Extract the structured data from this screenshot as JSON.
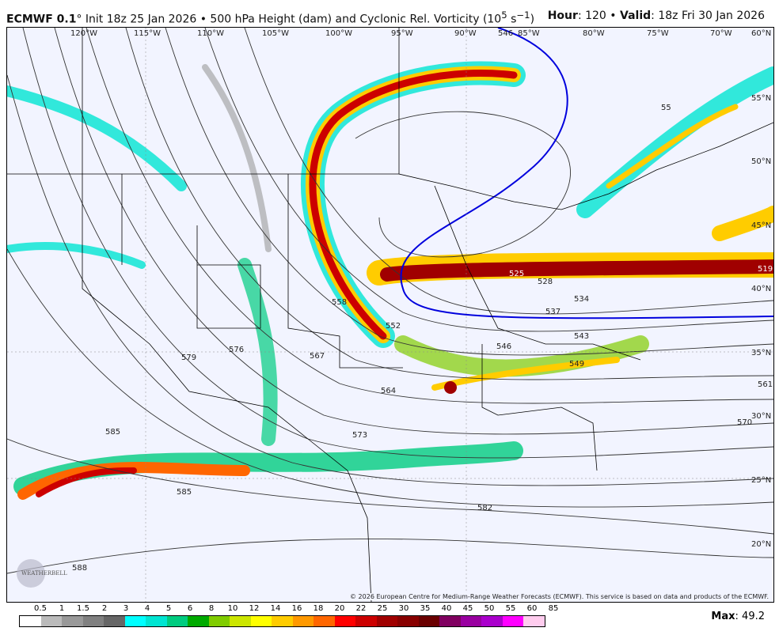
{
  "header": {
    "model": "ECMWF 0.1",
    "degree": "°",
    "init": " Init 18z 25 Jan 2026 • 500 hPa Height (dam) and Cyclonic Rel. Vorticity (10",
    "unit_exp": "5",
    "unit_tail": " s",
    "unit_tail_exp": "−1",
    "unit_close": ")",
    "hour_label": "Hour",
    "hour": "120",
    "valid_label": "Valid",
    "valid": "18z Fri 30 Jan 2026"
  },
  "map": {
    "longitudes": [
      "120°W",
      "115°W",
      "110°W",
      "105°W",
      "100°W",
      "95°W",
      "90°W",
      "85°W",
      "80°W",
      "75°W",
      "70°W",
      "60°N"
    ],
    "latitudes": [
      "55°N",
      "50°N",
      "45°N",
      "40°N",
      "35°N",
      "30°N",
      "25°N",
      "20°N"
    ],
    "contour_labels": [
      "546",
      "525",
      "528",
      "534",
      "537",
      "543",
      "546",
      "549",
      "552",
      "558",
      "561",
      "564",
      "567",
      "570",
      "573",
      "576",
      "579",
      "582",
      "585",
      "588",
      "519",
      "585",
      "55"
    ],
    "copyright": "© 2026 European Centre for Medium-Range Weather Forecasts (ECMWF). This service is based on data and products of the ECMWF.",
    "logo_text": "WEATHERBELL",
    "colors": {
      "background": "#f2f4ff",
      "highlight_contour": "#0000dd",
      "contour": "#333333"
    }
  },
  "colorbar": {
    "ticks": [
      "0.5",
      "1",
      "1.5",
      "2",
      "3",
      "4",
      "5",
      "6",
      "8",
      "10",
      "12",
      "14",
      "16",
      "18",
      "20",
      "22",
      "25",
      "30",
      "35",
      "40",
      "45",
      "50",
      "55",
      "60",
      "85"
    ],
    "colors": [
      "#ffffff",
      "#bbbbbb",
      "#999999",
      "#808080",
      "#666666",
      "#00ffff",
      "#00e5d2",
      "#00cc80",
      "#00aa00",
      "#80cc00",
      "#cce600",
      "#ffff00",
      "#ffcc00",
      "#ff9900",
      "#ff6600",
      "#ff0000",
      "#cc0000",
      "#a00000",
      "#880000",
      "#6a0000",
      "#800060",
      "#9900a0",
      "#aa00cc",
      "#ff00ff",
      "#ffccee"
    ]
  },
  "max": {
    "label": "Max",
    "value": "49.2"
  }
}
